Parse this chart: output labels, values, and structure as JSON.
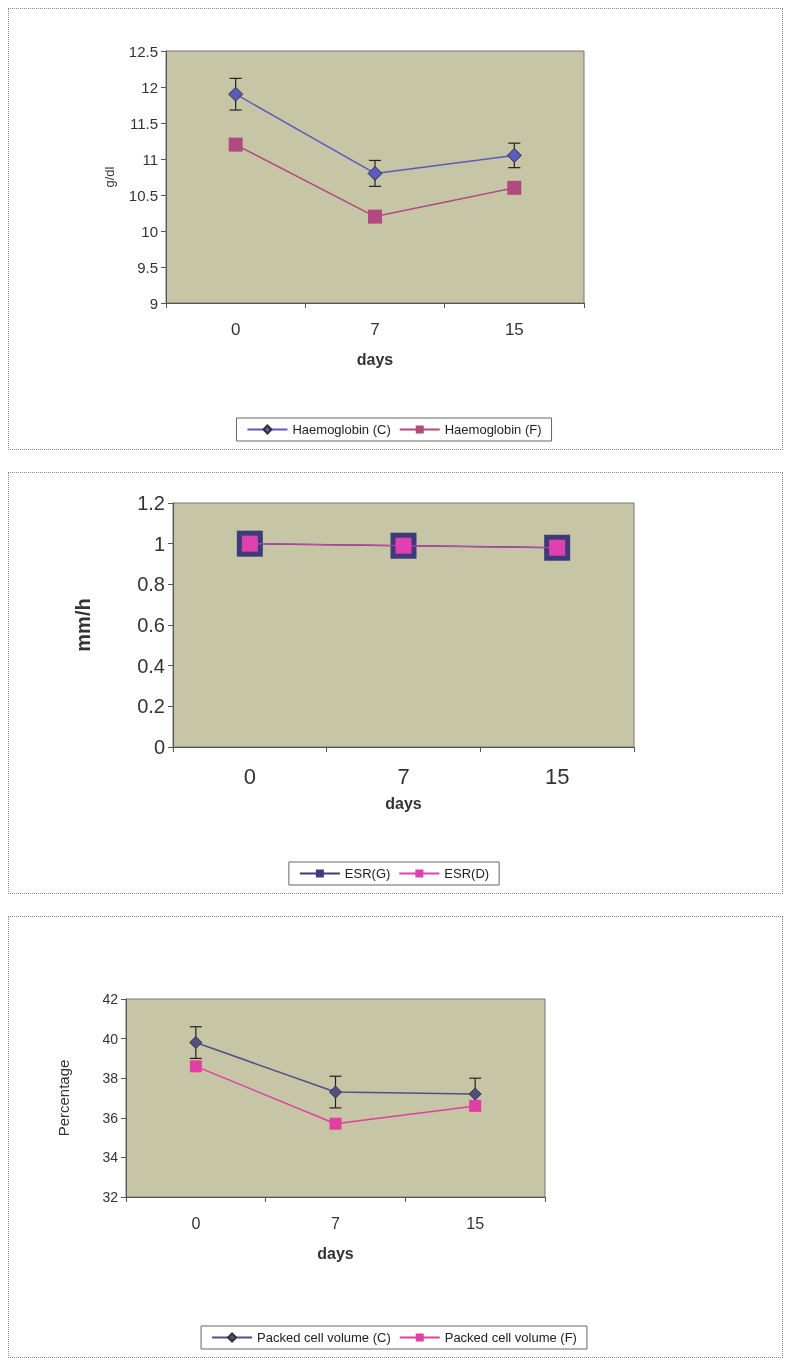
{
  "chart_data": [
    {
      "type": "line",
      "xlabel": "days",
      "ylabel": "g/dl",
      "categories": [
        "0",
        "7",
        "15"
      ],
      "ylim": [
        9,
        12.5
      ],
      "yticks": [
        9,
        9.5,
        10,
        10.5,
        11,
        11.5,
        12,
        12.5
      ],
      "legend": "bottom",
      "series": [
        {
          "name": "Haemoglobin (C)",
          "color": "#5a5ac0",
          "marker": "diamond",
          "values": [
            11.9,
            10.8,
            11.05
          ],
          "errors": [
            0.22,
            0.18,
            0.17
          ]
        },
        {
          "name": "Haemoglobin (F)",
          "color": "#b04a80",
          "marker": "square",
          "values": [
            11.2,
            10.2,
            10.6
          ]
        }
      ]
    },
    {
      "type": "line",
      "xlabel": "days",
      "ylabel": "mm/h",
      "categories": [
        "0",
        "7",
        "15"
      ],
      "ylim": [
        0,
        1.2
      ],
      "yticks": [
        0,
        0.2,
        0.4,
        0.6,
        0.8,
        1,
        1.2
      ],
      "legend": "bottom",
      "series": [
        {
          "name": "ESR(G)",
          "color": "#3c3c78",
          "marker": "square",
          "values": [
            1,
            0.99,
            0.98
          ]
        },
        {
          "name": "ESR(D)",
          "color": "#e040b0",
          "marker": "square",
          "values": [
            1,
            0.99,
            0.98
          ]
        }
      ]
    },
    {
      "type": "line",
      "xlabel": "days",
      "ylabel": "Percentage",
      "categories": [
        "0",
        "7",
        "15"
      ],
      "ylim": [
        32,
        42
      ],
      "yticks": [
        32,
        34,
        36,
        38,
        40,
        42
      ],
      "legend": "bottom",
      "series": [
        {
          "name": "Packed cell volume (C)",
          "color": "#505088",
          "marker": "diamond",
          "values": [
            39.8,
            37.3,
            37.2
          ],
          "errors": [
            0.8,
            0.8,
            0.8
          ]
        },
        {
          "name": "Packed cell volume (F)",
          "color": "#e040a0",
          "marker": "square",
          "values": [
            38.6,
            35.7,
            36.6
          ]
        }
      ]
    }
  ]
}
